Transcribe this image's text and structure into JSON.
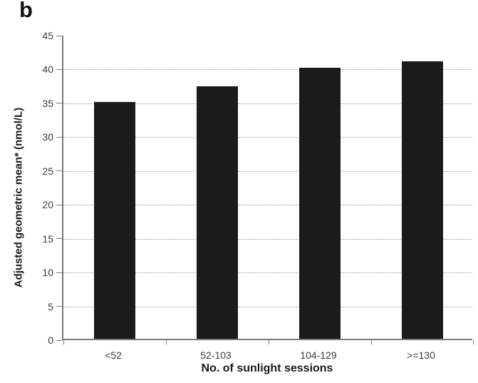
{
  "panel_label": "b",
  "colors": {
    "bar": "#1b1b1b",
    "axis": "#7a7a7a",
    "gridline": "#9a9a9a",
    "tick_text": "#3c3c3c",
    "title_text": "#1a1a1a",
    "background": "#ffffff"
  },
  "chart_data": {
    "type": "bar",
    "categories": [
      "<52",
      "52-103",
      "104-129",
      ">=130"
    ],
    "values": [
      35,
      37.3,
      40,
      41
    ],
    "title": "",
    "xlabel": "No. of sunlight sessions",
    "ylabel": "Adjusted geometric mean* (nmol/L)",
    "ylim": [
      0,
      45
    ],
    "yticks": [
      0,
      5,
      10,
      15,
      20,
      25,
      30,
      35,
      40,
      45
    ],
    "grid": "horizontal-dotted",
    "legend": "none",
    "bar_color": "#1b1b1b"
  }
}
